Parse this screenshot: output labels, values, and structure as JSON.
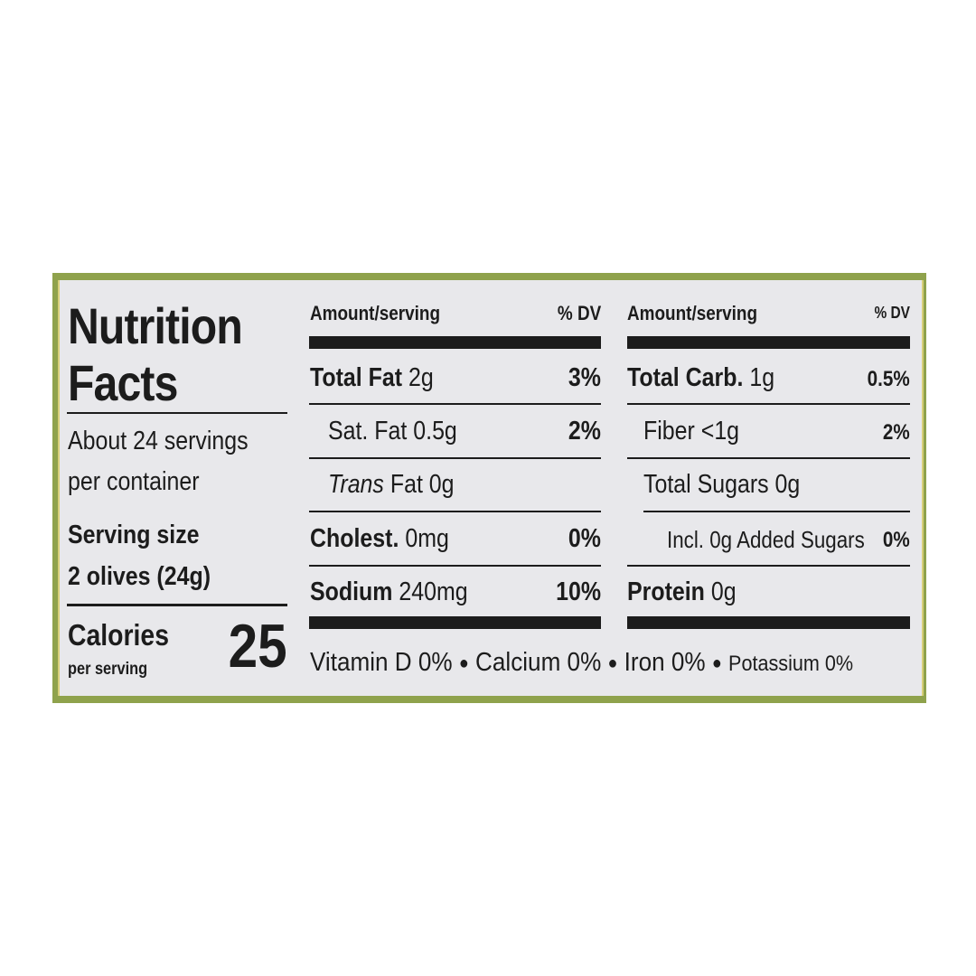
{
  "left": {
    "title_line1": "Nutrition",
    "title_line2": "Facts",
    "servings_line1": "About 24 servings",
    "servings_line2": "per container",
    "serving_size_label": "Serving size",
    "serving_size_value": "2 olives (24g)",
    "calories_label": "Calories",
    "calories_sub": "per serving",
    "calories_value": "25"
  },
  "middle": {
    "header_amount": "Amount/serving",
    "header_dv": "% DV",
    "rows": [
      {
        "name": "Total Fat",
        "amount": "2g",
        "dv": "3%"
      },
      {
        "name": "Sat. Fat",
        "amount": "0.5g",
        "dv": "2%"
      },
      {
        "name": "Trans",
        "name_rest": "Fat 0g",
        "dv": ""
      },
      {
        "name": "Cholest.",
        "amount": "0mg",
        "dv": "0%"
      },
      {
        "name": "Sodium",
        "amount": "240mg",
        "dv": "10%"
      }
    ]
  },
  "right": {
    "header_amount": "Amount/serving",
    "header_dv": "% DV",
    "rows": [
      {
        "name": "Total Carb.",
        "amount": "1g",
        "dv": "0.5%"
      },
      {
        "name": "Fiber <1g",
        "dv": "2%"
      },
      {
        "name": "Total Sugars 0g",
        "dv": ""
      },
      {
        "name": "Incl. 0g Added Sugars",
        "dv": "0%"
      },
      {
        "name": "Protein",
        "amount": "0g",
        "dv": ""
      }
    ]
  },
  "footer": {
    "vitamin_d": "Vitamin D 0%",
    "calcium": "Calcium 0%",
    "iron": "Iron 0%",
    "potassium": "Potassium 0%",
    "separator": "●"
  },
  "colors": {
    "border_green": "#8fa24c",
    "label_bg": "#e8e8eb",
    "ink": "#1c1c1c"
  }
}
